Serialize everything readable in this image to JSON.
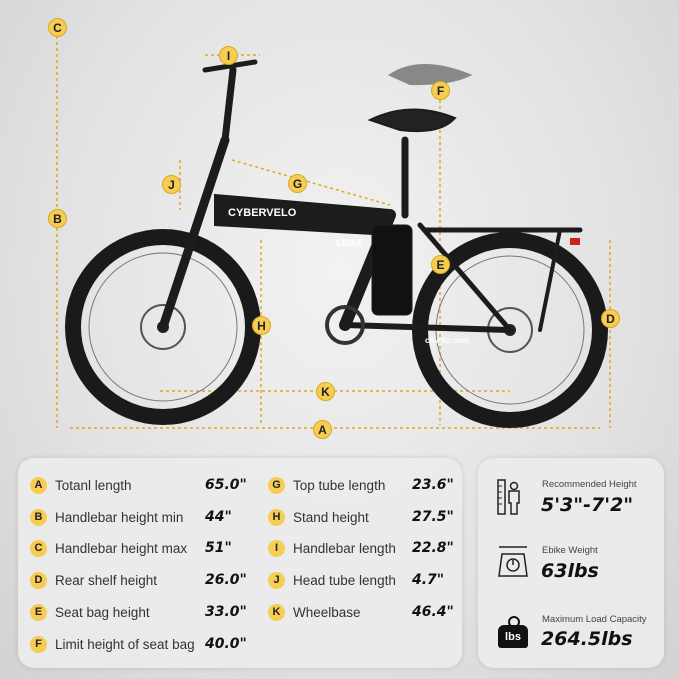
{
  "brand_logo": "CYBERVELO",
  "battery_label": "EBIKE",
  "website": "cbvelo.com",
  "markers": [
    "A",
    "B",
    "C",
    "D",
    "E",
    "F",
    "G",
    "H",
    "I",
    "J",
    "K"
  ],
  "marker_color": "#f6cd52",
  "specs_left": [
    {
      "key": "A",
      "label": "Totanl length",
      "value": "65.0\""
    },
    {
      "key": "B",
      "label": "Handlebar height min",
      "value": "44\""
    },
    {
      "key": "C",
      "label": "Handlebar height max",
      "value": "51\""
    },
    {
      "key": "D",
      "label": "Rear shelf height",
      "value": "26.0\""
    },
    {
      "key": "E",
      "label": "Seat bag height",
      "value": "33.0\""
    },
    {
      "key": "F",
      "label": "Limit height of seat bag",
      "value": "40.0\""
    }
  ],
  "specs_right": [
    {
      "key": "G",
      "label": "Top tube length",
      "value": "23.6\""
    },
    {
      "key": "H",
      "label": "Stand height",
      "value": "27.5\""
    },
    {
      "key": "I",
      "label": "Handlebar length",
      "value": "22.8\""
    },
    {
      "key": "J",
      "label": "Head tube length",
      "value": "4.7\""
    },
    {
      "key": "K",
      "label": "Wheelbase",
      "value": "46.4\""
    }
  ],
  "stats": [
    {
      "icon": "height-ruler-person-icon",
      "label": "Recommended Height",
      "value": "5'3\"-7'2\""
    },
    {
      "icon": "scale-icon",
      "label": "Ebike Weight",
      "value": "63lbs"
    },
    {
      "icon": "weight-lbs-icon",
      "label": "Maximum Load Capacity",
      "value": "264.5lbs",
      "icon_text": "lbs"
    }
  ]
}
